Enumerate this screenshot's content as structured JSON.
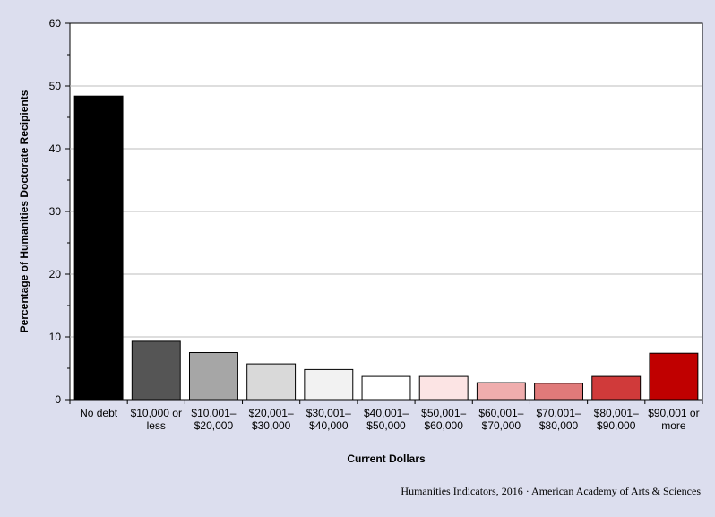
{
  "chart_data": {
    "type": "bar",
    "title": "",
    "categories": [
      [
        "No debt"
      ],
      [
        "$10,000 or",
        "less"
      ],
      [
        "$10,001–",
        "$20,000"
      ],
      [
        "$20,001–",
        "$30,000"
      ],
      [
        "$30,001–",
        "$40,000"
      ],
      [
        "$40,001–",
        "$50,000"
      ],
      [
        "$50,001–",
        "$60,000"
      ],
      [
        "$60,001–",
        "$70,000"
      ],
      [
        "$70,001–",
        "$80,000"
      ],
      [
        "$80,001–",
        "$90,000"
      ],
      [
        "$90,001 or",
        "more"
      ]
    ],
    "values": [
      48.4,
      9.3,
      7.5,
      5.7,
      4.8,
      3.7,
      3.7,
      2.7,
      2.6,
      3.7,
      7.4
    ],
    "colors": [
      "#000000",
      "#555555",
      "#a6a6a6",
      "#d9d9d9",
      "#f2f2f2",
      "#ffffff",
      "#fce4e4",
      "#efadad",
      "#e07a7a",
      "#d03a3a",
      "#c00000"
    ],
    "xlabel": "Current Dollars",
    "ylabel": "Percentage of Humanities Doctorate Recipients",
    "ylim": [
      0,
      60
    ],
    "yticks": [
      0,
      10,
      20,
      30,
      40,
      50,
      60
    ],
    "grid": true,
    "legend": "none"
  },
  "source": "Humanities  Indicators, 2016 · American Academy of Arts & Sciences",
  "colors": {
    "page_background": "#dcdeee",
    "plot_background": "#ffffff",
    "gridline": "#bdbdbd"
  }
}
